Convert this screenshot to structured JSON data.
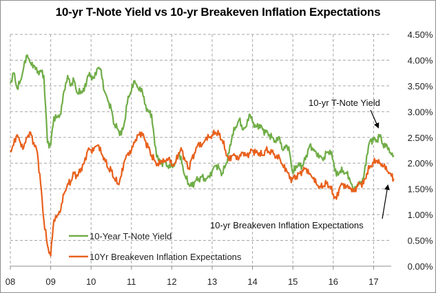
{
  "chart_data": {
    "type": "line",
    "title": "10-yr T-Note Yield vs 10-yr Breakeven Inflation Expectations",
    "xlabel": "",
    "ylabel": "",
    "x_ticks": [
      "08",
      "09",
      "10",
      "11",
      "12",
      "13",
      "14",
      "15",
      "16",
      "17"
    ],
    "y_ticks": [
      "0.00%",
      "0.50%",
      "1.00%",
      "1.50%",
      "2.00%",
      "2.50%",
      "3.00%",
      "3.50%",
      "4.00%",
      "4.50%"
    ],
    "ylim": [
      0,
      4.5
    ],
    "xlim": [
      2008.0,
      2017.55
    ],
    "grid": true,
    "y_axis_side": "right",
    "legend_position": "bottom-left",
    "colors": {
      "yield": "#70ad47",
      "breakeven": "#e8601c",
      "grid": "#a6a6a6",
      "axis": "#8c8c8c"
    },
    "x": [
      2008.0,
      2008.08,
      2008.17,
      2008.25,
      2008.33,
      2008.42,
      2008.5,
      2008.58,
      2008.67,
      2008.75,
      2008.83,
      2008.92,
      2009.0,
      2009.08,
      2009.17,
      2009.25,
      2009.33,
      2009.42,
      2009.5,
      2009.58,
      2009.67,
      2009.75,
      2009.83,
      2009.92,
      2010.0,
      2010.08,
      2010.17,
      2010.25,
      2010.33,
      2010.42,
      2010.5,
      2010.58,
      2010.67,
      2010.75,
      2010.83,
      2010.92,
      2011.0,
      2011.08,
      2011.17,
      2011.25,
      2011.33,
      2011.42,
      2011.5,
      2011.58,
      2011.67,
      2011.75,
      2011.83,
      2011.92,
      2012.0,
      2012.08,
      2012.17,
      2012.25,
      2012.33,
      2012.42,
      2012.5,
      2012.58,
      2012.67,
      2012.75,
      2012.83,
      2012.92,
      2013.0,
      2013.08,
      2013.17,
      2013.25,
      2013.33,
      2013.42,
      2013.5,
      2013.58,
      2013.67,
      2013.75,
      2013.83,
      2013.92,
      2014.0,
      2014.08,
      2014.17,
      2014.25,
      2014.33,
      2014.42,
      2014.5,
      2014.58,
      2014.67,
      2014.75,
      2014.83,
      2014.92,
      2015.0,
      2015.08,
      2015.17,
      2015.25,
      2015.33,
      2015.42,
      2015.5,
      2015.58,
      2015.67,
      2015.75,
      2015.83,
      2015.92,
      2016.0,
      2016.08,
      2016.17,
      2016.25,
      2016.33,
      2016.42,
      2016.5,
      2016.58,
      2016.67,
      2016.75,
      2016.83,
      2016.92,
      2017.0,
      2017.08,
      2017.17,
      2017.25,
      2017.33,
      2017.42,
      2017.5
    ],
    "series": [
      {
        "name": "10-Year T-Note Yield",
        "values": [
          3.55,
          3.75,
          3.45,
          3.6,
          3.85,
          4.1,
          3.95,
          3.9,
          3.75,
          3.8,
          3.7,
          2.4,
          2.35,
          2.9,
          2.9,
          2.95,
          3.4,
          3.7,
          3.5,
          3.6,
          3.35,
          3.4,
          3.4,
          3.7,
          3.7,
          3.65,
          3.85,
          3.8,
          3.4,
          3.2,
          3.05,
          2.75,
          2.65,
          2.55,
          2.8,
          3.3,
          3.4,
          3.6,
          3.45,
          3.45,
          3.15,
          3.0,
          2.95,
          2.35,
          2.05,
          2.0,
          2.05,
          1.9,
          1.95,
          2.0,
          2.2,
          2.0,
          1.75,
          1.6,
          1.55,
          1.65,
          1.7,
          1.75,
          1.65,
          1.75,
          1.85,
          1.95,
          1.9,
          1.8,
          1.95,
          2.2,
          2.55,
          2.7,
          2.85,
          2.65,
          2.7,
          2.95,
          2.8,
          2.7,
          2.75,
          2.65,
          2.6,
          2.55,
          2.5,
          2.4,
          2.5,
          2.25,
          2.35,
          2.2,
          1.8,
          1.95,
          1.95,
          1.95,
          2.15,
          2.35,
          2.25,
          2.2,
          2.15,
          2.05,
          2.2,
          2.25,
          2.05,
          1.75,
          1.85,
          1.85,
          1.8,
          1.65,
          1.5,
          1.55,
          1.6,
          1.7,
          2.15,
          2.45,
          2.45,
          2.45,
          2.55,
          2.3,
          2.35,
          2.2,
          2.15
        ]
      },
      {
        "name": "10Yr Breakeven Inflation Expectations",
        "values": [
          2.25,
          2.35,
          2.55,
          2.4,
          2.3,
          2.5,
          2.6,
          2.4,
          2.2,
          1.6,
          0.9,
          0.4,
          0.2,
          0.9,
          1.0,
          1.1,
          1.4,
          1.6,
          1.65,
          1.8,
          1.75,
          1.9,
          2.0,
          2.25,
          2.25,
          2.3,
          2.35,
          2.2,
          2.1,
          1.9,
          1.85,
          1.7,
          1.6,
          1.75,
          2.05,
          2.2,
          2.25,
          2.4,
          2.55,
          2.6,
          2.45,
          2.3,
          2.15,
          2.05,
          1.95,
          2.05,
          2.05,
          2.1,
          1.95,
          2.0,
          2.2,
          2.25,
          2.05,
          1.9,
          2.1,
          2.2,
          2.4,
          2.35,
          2.45,
          2.5,
          2.55,
          2.6,
          2.55,
          2.45,
          2.25,
          2.05,
          2.15,
          2.15,
          2.1,
          2.2,
          2.15,
          2.2,
          2.25,
          2.2,
          2.2,
          2.15,
          2.25,
          2.2,
          2.25,
          2.1,
          2.1,
          1.95,
          1.9,
          1.7,
          1.7,
          1.75,
          1.8,
          1.85,
          1.9,
          1.8,
          1.7,
          1.6,
          1.55,
          1.55,
          1.6,
          1.55,
          1.4,
          1.3,
          1.55,
          1.6,
          1.55,
          1.5,
          1.45,
          1.55,
          1.6,
          1.6,
          1.8,
          1.95,
          2.0,
          2.05,
          2.0,
          1.95,
          1.85,
          1.8,
          1.7
        ]
      }
    ],
    "legend": [
      "10-Year T-Note Yield",
      "10Yr Breakeven Inflation Expectations"
    ],
    "annotations": [
      {
        "text": "10-yr T-Note Yield",
        "points_to": "10-Year T-Note Yield",
        "at_x": 2017.0
      },
      {
        "text": "10-yr Breakeven Inflation Expectations",
        "points_to": "10Yr Breakeven Inflation Expectations",
        "at_x": 2017.45
      }
    ]
  }
}
